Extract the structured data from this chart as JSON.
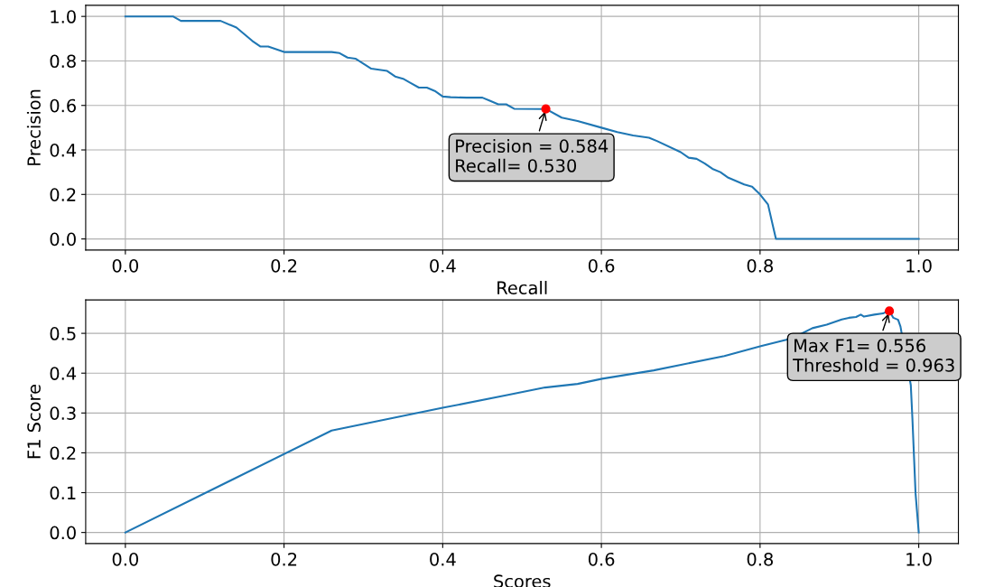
{
  "chart_data": [
    {
      "type": "line",
      "xlabel": "Recall",
      "ylabel": "Precision",
      "grid": true,
      "xlim": [
        -0.05,
        1.05
      ],
      "ylim": [
        -0.05,
        1.05
      ],
      "xticks": [
        {
          "value": 0,
          "label": "0.0"
        },
        {
          "value": 0.2,
          "label": "0.2"
        },
        {
          "value": 0.4,
          "label": "0.4"
        },
        {
          "value": 0.6,
          "label": "0.6"
        },
        {
          "value": 0.8,
          "label": "0.8"
        },
        {
          "value": 1,
          "label": "1.0"
        }
      ],
      "yticks": [
        {
          "value": 0,
          "label": "0.0"
        },
        {
          "value": 0.2,
          "label": "0.2"
        },
        {
          "value": 0.4,
          "label": "0.4"
        },
        {
          "value": 0.6,
          "label": "0.6"
        },
        {
          "value": 0.8,
          "label": "0.8"
        },
        {
          "value": 1,
          "label": "1.0"
        }
      ],
      "series": [
        {
          "color": "#1f77b4",
          "x": [
            0,
            0.06,
            0.07,
            0.12,
            0.14,
            0.16,
            0.17,
            0.18,
            0.2,
            0.26,
            0.27,
            0.28,
            0.29,
            0.31,
            0.33,
            0.34,
            0.35,
            0.36,
            0.37,
            0.38,
            0.39,
            0.4,
            0.41,
            0.43,
            0.45,
            0.46,
            0.47,
            0.48,
            0.49,
            0.53,
            0.55,
            0.57,
            0.6,
            0.62,
            0.64,
            0.66,
            0.67,
            0.7,
            0.71,
            0.72,
            0.73,
            0.74,
            0.75,
            0.76,
            0.78,
            0.79,
            0.8,
            0.81,
            0.82,
            1.0
          ],
          "values": [
            1.0,
            1.0,
            0.98,
            0.98,
            0.95,
            0.89,
            0.865,
            0.865,
            0.84,
            0.84,
            0.835,
            0.815,
            0.81,
            0.765,
            0.755,
            0.73,
            0.72,
            0.7,
            0.68,
            0.68,
            0.665,
            0.64,
            0.637,
            0.635,
            0.635,
            0.62,
            0.605,
            0.605,
            0.585,
            0.584,
            0.545,
            0.53,
            0.5,
            0.48,
            0.465,
            0.455,
            0.44,
            0.39,
            0.365,
            0.36,
            0.34,
            0.315,
            0.3,
            0.275,
            0.245,
            0.235,
            0.2,
            0.155,
            0.0,
            0.0
          ]
        },
        {
          "type": "scatter",
          "color": "#ff0000",
          "marker": "circle",
          "x": [
            0.53
          ],
          "values": [
            0.584
          ]
        }
      ],
      "annotations": [
        {
          "text": "Precision = 0.584\nRecall= 0.530",
          "x": 0.53,
          "y": 0.584
        }
      ]
    },
    {
      "type": "line",
      "xlabel": "Scores",
      "ylabel": "F1 Score",
      "grid": true,
      "xlim": [
        -0.05,
        1.05
      ],
      "ylim": [
        -0.0278,
        0.5838
      ],
      "xticks": [
        {
          "value": 0,
          "label": "0.0"
        },
        {
          "value": 0.2,
          "label": "0.2"
        },
        {
          "value": 0.4,
          "label": "0.4"
        },
        {
          "value": 0.6,
          "label": "0.6"
        },
        {
          "value": 0.8,
          "label": "0.8"
        },
        {
          "value": 1,
          "label": "1.0"
        }
      ],
      "yticks": [
        {
          "value": 0,
          "label": "0.0"
        },
        {
          "value": 0.1,
          "label": "0.1"
        },
        {
          "value": 0.2,
          "label": "0.2"
        },
        {
          "value": 0.3,
          "label": "0.3"
        },
        {
          "value": 0.4,
          "label": "0.4"
        },
        {
          "value": 0.5,
          "label": "0.5"
        }
      ],
      "series": [
        {
          "color": "#1f77b4",
          "x": [
            0,
            0.26,
            0.4,
            0.481,
            0.529,
            0.57,
            0.601,
            0.666,
            0.755,
            0.801,
            0.833,
            0.851,
            0.866,
            0.884,
            0.903,
            0.912,
            0.921,
            0.927,
            0.931,
            0.944,
            0.955,
            0.958,
            0.963,
            0.968,
            0.974,
            0.977,
            0.99,
            0.992,
            0.996,
            1.0
          ],
          "values": [
            0,
            0.256,
            0.313,
            0.345,
            0.364,
            0.373,
            0.386,
            0.407,
            0.443,
            0.468,
            0.484,
            0.498,
            0.513,
            0.522,
            0.535,
            0.539,
            0.541,
            0.547,
            0.542,
            0.547,
            0.55,
            0.553,
            0.556,
            0.539,
            0.534,
            0.517,
            0.37,
            0.287,
            0.098,
            0.0
          ]
        },
        {
          "type": "scatter",
          "color": "#ff0000",
          "marker": "circle",
          "x": [
            0.963
          ],
          "values": [
            0.556
          ]
        }
      ],
      "annotations": [
        {
          "text": "Max F1= 0.556\nThreshold = 0.963",
          "x": 0.963,
          "y": 0.556
        }
      ]
    }
  ]
}
